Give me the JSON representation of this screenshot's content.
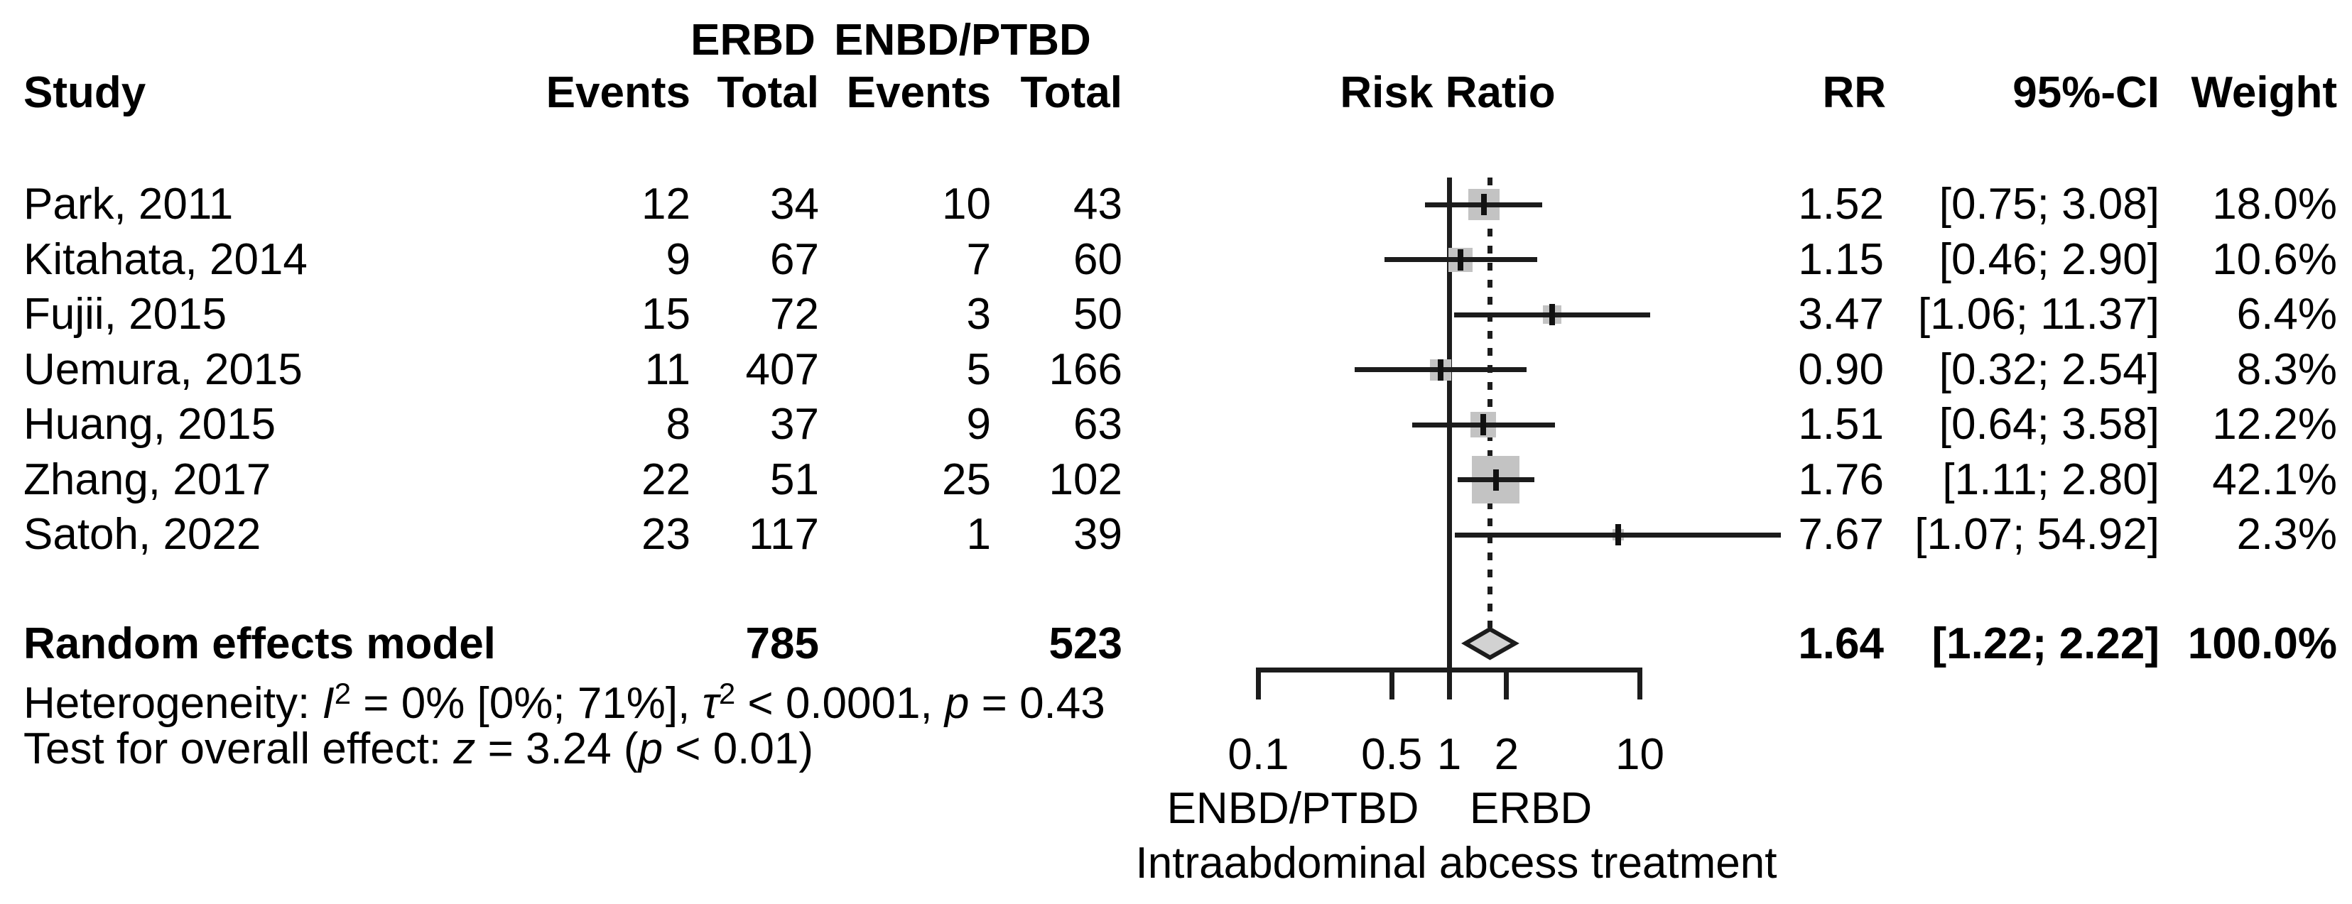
{
  "header": {
    "group1": "ERBD",
    "group2": "ENBD/PTBD"
  },
  "columns": {
    "study": "Study",
    "events1": "Events",
    "total1": "Total",
    "events2": "Events",
    "total2": "Total",
    "risk_ratio": "Risk Ratio",
    "rr": "RR",
    "ci": "95%-CI",
    "weight": "Weight"
  },
  "chart_data": {
    "type": "forest",
    "x_scale": "log10",
    "effect_measure": "Risk Ratio",
    "axis_ticks": [
      0.1,
      0.5,
      1,
      2,
      10
    ],
    "axis_tick_labels": [
      "0.1",
      "0.5",
      "1",
      "2",
      "10"
    ],
    "axis_range": [
      0.1,
      10
    ],
    "null_line": 1,
    "pooled_dashed_line": 1.64,
    "axis_label_left": "ENBD/PTBD",
    "axis_label_right": "ERBD",
    "caption": "Intraabdominal abcess treatment",
    "studies": [
      {
        "study": "Park, 2011",
        "e1": 12,
        "t1": 34,
        "e2": 10,
        "t2": 43,
        "rr": 1.52,
        "lo": 0.75,
        "hi": 3.08,
        "rr_text": "1.52",
        "ci_text": "[0.75; 3.08]",
        "weight_text": "18.0%",
        "weight": 18.0
      },
      {
        "study": "Kitahata, 2014",
        "e1": 9,
        "t1": 67,
        "e2": 7,
        "t2": 60,
        "rr": 1.15,
        "lo": 0.46,
        "hi": 2.9,
        "rr_text": "1.15",
        "ci_text": "[0.46; 2.90]",
        "weight_text": "10.6%",
        "weight": 10.6
      },
      {
        "study": "Fujii, 2015",
        "e1": 15,
        "t1": 72,
        "e2": 3,
        "t2": 50,
        "rr": 3.47,
        "lo": 1.06,
        "hi": 11.37,
        "rr_text": "3.47",
        "ci_text": "[1.06; 11.37]",
        "weight_text": "6.4%",
        "weight": 6.4
      },
      {
        "study": "Uemura, 2015",
        "e1": 11,
        "t1": 407,
        "e2": 5,
        "t2": 166,
        "rr": 0.9,
        "lo": 0.32,
        "hi": 2.54,
        "rr_text": "0.90",
        "ci_text": "[0.32; 2.54]",
        "weight_text": "8.3%",
        "weight": 8.3
      },
      {
        "study": "Huang, 2015",
        "e1": 8,
        "t1": 37,
        "e2": 9,
        "t2": 63,
        "rr": 1.51,
        "lo": 0.64,
        "hi": 3.58,
        "rr_text": "1.51",
        "ci_text": "[0.64; 3.58]",
        "weight_text": "12.2%",
        "weight": 12.2
      },
      {
        "study": "Zhang, 2017",
        "e1": 22,
        "t1": 51,
        "e2": 25,
        "t2": 102,
        "rr": 1.76,
        "lo": 1.11,
        "hi": 2.8,
        "rr_text": "1.76",
        "ci_text": "[1.11; 2.80]",
        "weight_text": "42.1%",
        "weight": 42.1
      },
      {
        "study": "Satoh, 2022",
        "e1": 23,
        "t1": 117,
        "e2": 1,
        "t2": 39,
        "rr": 7.67,
        "lo": 1.07,
        "hi": 54.92,
        "rr_text": "7.67",
        "ci_text": "[1.07; 54.92]",
        "weight_text": "2.3%",
        "weight": 2.3
      }
    ],
    "summary": {
      "label": "Random effects model",
      "t1": "785",
      "t2": "523",
      "rr": 1.64,
      "lo": 1.22,
      "hi": 2.22,
      "rr_text": "1.64",
      "ci_text": "[1.22; 2.22]",
      "weight_text": "100.0%"
    }
  },
  "footer": {
    "heterogeneity_parts": [
      {
        "t": "Heterogeneity: "
      },
      {
        "t": "I",
        "s": "it"
      },
      {
        "t": "2",
        "s": "sup"
      },
      {
        "t": " = 0% [0%; 71%], "
      },
      {
        "t": "τ",
        "s": "it"
      },
      {
        "t": "2",
        "s": "sup"
      },
      {
        "t": " < 0.0001, "
      },
      {
        "t": "p",
        "s": "it"
      },
      {
        "t": " = 0.43"
      }
    ],
    "overall_effect_parts": [
      {
        "t": "Test for overall effect: "
      },
      {
        "t": "z",
        "s": "it"
      },
      {
        "t": " = 3.24 ("
      },
      {
        "t": "p",
        "s": "it"
      },
      {
        "t": " < 0.01)"
      }
    ]
  }
}
